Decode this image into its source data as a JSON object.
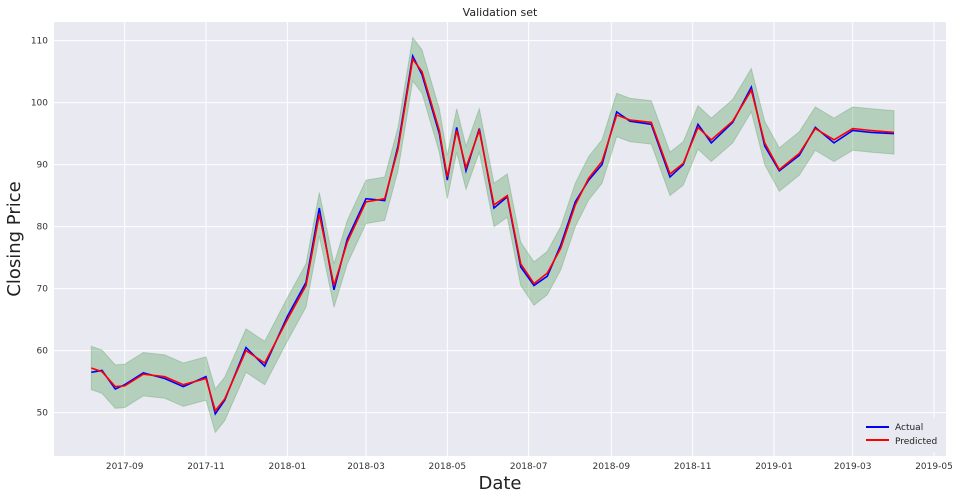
{
  "chart_data": {
    "type": "line",
    "title": "Validation set",
    "xlabel": "Date",
    "ylabel": "Closing Price",
    "x_ticks": [
      "2017-09",
      "2017-11",
      "2018-01",
      "2018-03",
      "2018-05",
      "2018-07",
      "2018-09",
      "2018-11",
      "2019-01",
      "2019-03",
      "2019-05"
    ],
    "y_ticks": [
      50,
      60,
      70,
      80,
      90,
      100,
      110
    ],
    "xlim": [
      "2017-07-10",
      "2019-05-10"
    ],
    "ylim": [
      43,
      113
    ],
    "grid": true,
    "legend_position": "bottom-right",
    "band_width": 3.5,
    "colors": {
      "background": "#e9e9f1",
      "grid": "#ffffff",
      "actual": "#0000ff",
      "predicted": "#ff0000",
      "band": "#2e8b35"
    },
    "series": [
      {
        "name": "Actual",
        "x": [
          "2017-08-07",
          "2017-08-15",
          "2017-08-25",
          "2017-09-01",
          "2017-09-15",
          "2017-10-01",
          "2017-10-15",
          "2017-11-01",
          "2017-11-08",
          "2017-11-15",
          "2017-12-01",
          "2017-12-15",
          "2018-01-01",
          "2018-01-15",
          "2018-01-25",
          "2018-02-05",
          "2018-02-15",
          "2018-03-01",
          "2018-03-15",
          "2018-03-25",
          "2018-04-05",
          "2018-04-12",
          "2018-04-25",
          "2018-05-01",
          "2018-05-08",
          "2018-05-15",
          "2018-05-25",
          "2018-06-05",
          "2018-06-15",
          "2018-06-25",
          "2018-07-05",
          "2018-07-15",
          "2018-07-25",
          "2018-08-05",
          "2018-08-15",
          "2018-08-25",
          "2018-09-05",
          "2018-09-15",
          "2018-10-01",
          "2018-10-15",
          "2018-10-25",
          "2018-11-05",
          "2018-11-15",
          "2018-12-01",
          "2018-12-15",
          "2018-12-25",
          "2019-01-05",
          "2019-01-20",
          "2019-02-01",
          "2019-02-15",
          "2019-03-01",
          "2019-03-15",
          "2019-04-01"
        ],
        "values": [
          56.5,
          56.8,
          53.8,
          54.5,
          56.4,
          55.5,
          54.2,
          55.8,
          49.8,
          52.0,
          60.5,
          57.5,
          65.5,
          71.0,
          83.0,
          69.8,
          78.0,
          84.5,
          84.2,
          93.0,
          107.5,
          104.5,
          95.0,
          87.5,
          96.0,
          89.0,
          95.8,
          83.0,
          84.8,
          73.5,
          70.5,
          72.0,
          77.0,
          84.0,
          87.5,
          90.0,
          98.5,
          97.0,
          96.5,
          88.0,
          90.0,
          96.5,
          93.5,
          96.8,
          102.5,
          93.0,
          89.0,
          91.5,
          96.0,
          93.5,
          95.5,
          95.2,
          95.0
        ]
      },
      {
        "name": "Predicted",
        "x": [
          "2017-08-07",
          "2017-08-15",
          "2017-08-25",
          "2017-09-01",
          "2017-09-15",
          "2017-10-01",
          "2017-10-15",
          "2017-11-01",
          "2017-11-08",
          "2017-11-15",
          "2017-12-01",
          "2017-12-15",
          "2018-01-01",
          "2018-01-15",
          "2018-01-25",
          "2018-02-05",
          "2018-02-15",
          "2018-03-01",
          "2018-03-15",
          "2018-03-25",
          "2018-04-05",
          "2018-04-12",
          "2018-04-25",
          "2018-05-01",
          "2018-05-08",
          "2018-05-15",
          "2018-05-25",
          "2018-06-05",
          "2018-06-15",
          "2018-06-25",
          "2018-07-05",
          "2018-07-15",
          "2018-07-25",
          "2018-08-05",
          "2018-08-15",
          "2018-08-25",
          "2018-09-05",
          "2018-09-15",
          "2018-10-01",
          "2018-10-15",
          "2018-10-25",
          "2018-11-05",
          "2018-11-15",
          "2018-12-01",
          "2018-12-15",
          "2018-12-25",
          "2019-01-05",
          "2019-01-20",
          "2019-02-01",
          "2019-02-15",
          "2019-03-01",
          "2019-03-15",
          "2019-04-01"
        ],
        "values": [
          57.2,
          56.6,
          54.2,
          54.3,
          56.2,
          55.8,
          54.5,
          55.5,
          50.3,
          52.2,
          60.0,
          58.0,
          65.0,
          70.5,
          82.0,
          70.5,
          77.5,
          84.0,
          84.5,
          92.5,
          107.0,
          105.0,
          95.5,
          88.0,
          95.5,
          89.5,
          95.5,
          83.5,
          85.0,
          74.0,
          70.8,
          72.5,
          76.5,
          83.5,
          87.8,
          90.5,
          98.0,
          97.2,
          96.8,
          88.5,
          90.2,
          96.0,
          94.0,
          97.0,
          102.0,
          93.5,
          89.2,
          91.8,
          95.8,
          94.0,
          95.8,
          95.5,
          95.2
        ]
      }
    ]
  }
}
